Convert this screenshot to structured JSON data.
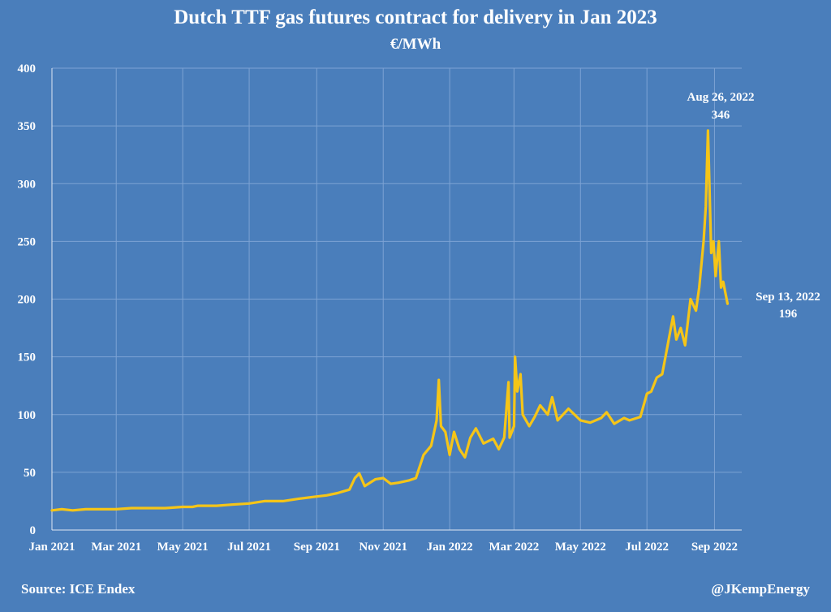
{
  "chart_data": {
    "type": "line",
    "title": "Dutch TTF gas futures contract for delivery in Jan 2023",
    "subtitle": "€/MWh",
    "xlabel": "",
    "ylabel": "",
    "ylim": [
      0,
      400
    ],
    "yticks": [
      "0",
      "50",
      "100",
      "150",
      "200",
      "250",
      "300",
      "350",
      "400"
    ],
    "xtick_labels": [
      "Jan 2021",
      "Mar 2021",
      "May 2021",
      "Jul 2021",
      "Sep 2021",
      "Nov 2021",
      "Jan 2022",
      "Mar 2022",
      "May 2022",
      "Jul 2022",
      "Sep 2022"
    ],
    "grid": true,
    "legend": "none",
    "line_color": "#f5c518",
    "series": [
      {
        "x": [
          "2021-01-01",
          "2021-01-10",
          "2021-01-20",
          "2021-02-01",
          "2021-02-15",
          "2021-03-01",
          "2021-03-15",
          "2021-04-01",
          "2021-04-15",
          "2021-05-01",
          "2021-05-10",
          "2021-05-15",
          "2021-06-01",
          "2021-06-15",
          "2021-07-01",
          "2021-07-15",
          "2021-08-01",
          "2021-08-15",
          "2021-09-01",
          "2021-09-10",
          "2021-09-20",
          "2021-10-01",
          "2021-10-06",
          "2021-10-10",
          "2021-10-15",
          "2021-10-25",
          "2021-11-01",
          "2021-11-08",
          "2021-11-15",
          "2021-11-25",
          "2021-12-01",
          "2021-12-08",
          "2021-12-15",
          "2021-12-20",
          "2021-12-22",
          "2021-12-24",
          "2021-12-28",
          "2022-01-01",
          "2022-01-05",
          "2022-01-10",
          "2022-01-15",
          "2022-01-20",
          "2022-01-25",
          "2022-02-01",
          "2022-02-10",
          "2022-02-15",
          "2022-02-20",
          "2022-02-24",
          "2022-02-25",
          "2022-03-01",
          "2022-03-02",
          "2022-03-04",
          "2022-03-07",
          "2022-03-09",
          "2022-03-15",
          "2022-03-20",
          "2022-03-25",
          "2022-04-01",
          "2022-04-05",
          "2022-04-10",
          "2022-04-15",
          "2022-04-20",
          "2022-05-01",
          "2022-05-10",
          "2022-05-20",
          "2022-05-25",
          "2022-06-01",
          "2022-06-10",
          "2022-06-15",
          "2022-06-25",
          "2022-07-01",
          "2022-07-05",
          "2022-07-10",
          "2022-07-15",
          "2022-07-20",
          "2022-07-25",
          "2022-07-28",
          "2022-08-01",
          "2022-08-05",
          "2022-08-10",
          "2022-08-15",
          "2022-08-18",
          "2022-08-22",
          "2022-08-24",
          "2022-08-26",
          "2022-08-29",
          "2022-08-31",
          "2022-09-02",
          "2022-09-05",
          "2022-09-07",
          "2022-09-09",
          "2022-09-13"
        ],
        "values": [
          17,
          18,
          17,
          18,
          18,
          18,
          19,
          19,
          19,
          20,
          20,
          21,
          21,
          22,
          23,
          25,
          25,
          27,
          29,
          30,
          32,
          35,
          45,
          49,
          38,
          44,
          45,
          40,
          41,
          43,
          45,
          65,
          73,
          95,
          130,
          90,
          85,
          65,
          85,
          70,
          63,
          80,
          88,
          75,
          79,
          70,
          80,
          128,
          80,
          90,
          150,
          120,
          135,
          100,
          90,
          98,
          108,
          100,
          115,
          95,
          100,
          105,
          95,
          93,
          97,
          102,
          92,
          97,
          95,
          98,
          118,
          120,
          132,
          135,
          160,
          185,
          165,
          175,
          160,
          200,
          190,
          210,
          250,
          280,
          346,
          240,
          250,
          220,
          250,
          210,
          215,
          196
        ]
      }
    ],
    "annotations": [
      {
        "date": "Aug 26, 2022",
        "value": "346"
      },
      {
        "date": "Sep 13, 2022",
        "value": "196"
      }
    ]
  },
  "footer": {
    "source": "Source: ICE Endex",
    "handle": "@JKempEnergy"
  }
}
